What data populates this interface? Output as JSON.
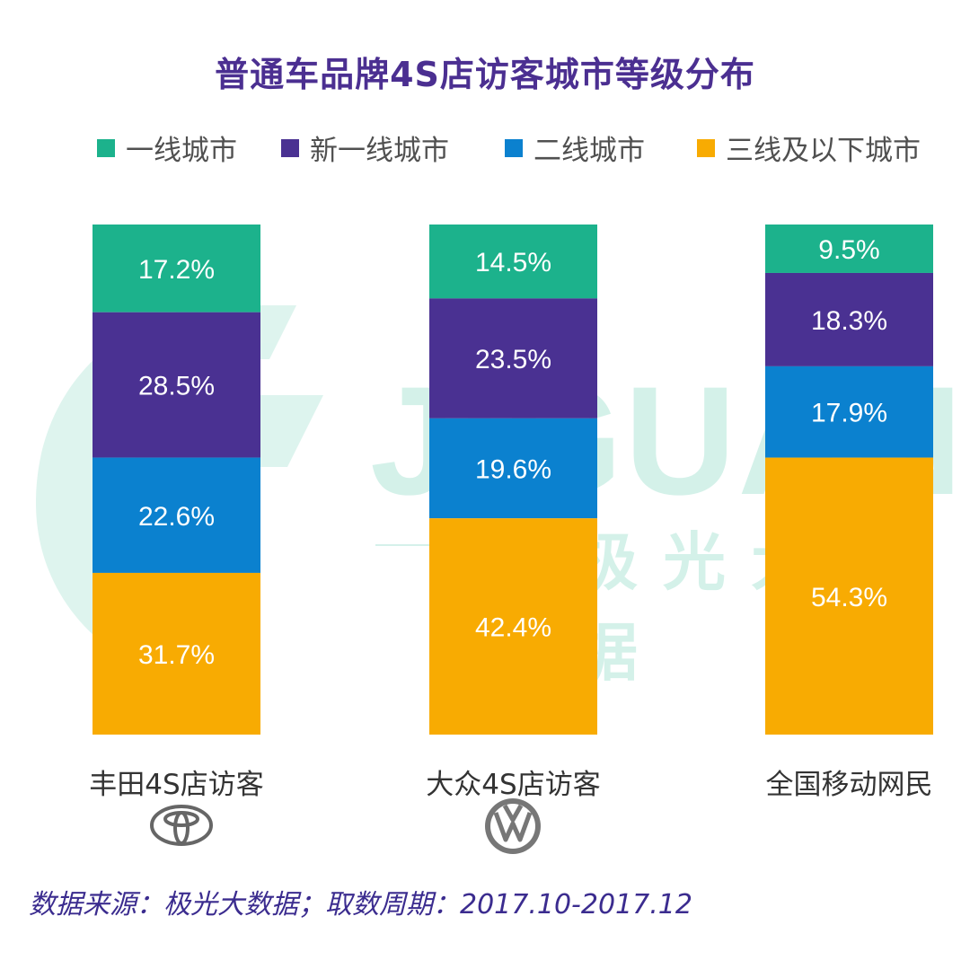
{
  "title": "普通车品牌4S店访客城市等级分布",
  "legend": [
    {
      "label": "一线城市",
      "color": "#1cb28c"
    },
    {
      "label": "新一线城市",
      "color": "#4a3192"
    },
    {
      "label": "二线城市",
      "color": "#0b81cf"
    },
    {
      "label": "三线及以下城市",
      "color": "#f8ab02"
    }
  ],
  "chart_data": {
    "type": "bar",
    "stacked": true,
    "normalized": true,
    "title": "普通车品牌4S店访客城市等级分布",
    "categories": [
      "丰田4S店访客",
      "大众4S店访客",
      "全国移动网民"
    ],
    "series": [
      {
        "name": "一线城市",
        "color": "#1cb28c",
        "values": [
          17.2,
          14.5,
          9.5
        ],
        "labels": [
          "17.2%",
          "14.5%",
          "9.5%"
        ]
      },
      {
        "name": "新一线城市",
        "color": "#4a3192",
        "values": [
          28.5,
          23.5,
          18.3
        ],
        "labels": [
          "28.5%",
          "23.5%",
          "18.3%"
        ]
      },
      {
        "name": "二线城市",
        "color": "#0b81cf",
        "values": [
          22.6,
          19.6,
          17.9
        ],
        "labels": [
          "22.6%",
          "19.6%",
          "17.9%"
        ]
      },
      {
        "name": "三线及以下城市",
        "color": "#f8ab02",
        "values": [
          31.7,
          42.4,
          54.3
        ],
        "labels": [
          "31.7%",
          "42.4%",
          "54.3%"
        ]
      }
    ],
    "legend_position": "top",
    "ylim": [
      0,
      100
    ],
    "grid": false
  },
  "logos": [
    "toyota-logo-icon",
    "volkswagen-logo-icon",
    ""
  ],
  "watermark": {
    "en": "JIGUANG",
    "cn": "极光大数据"
  },
  "source": "数据来源：极光大数据；取数周期：2017.10-2017.12"
}
